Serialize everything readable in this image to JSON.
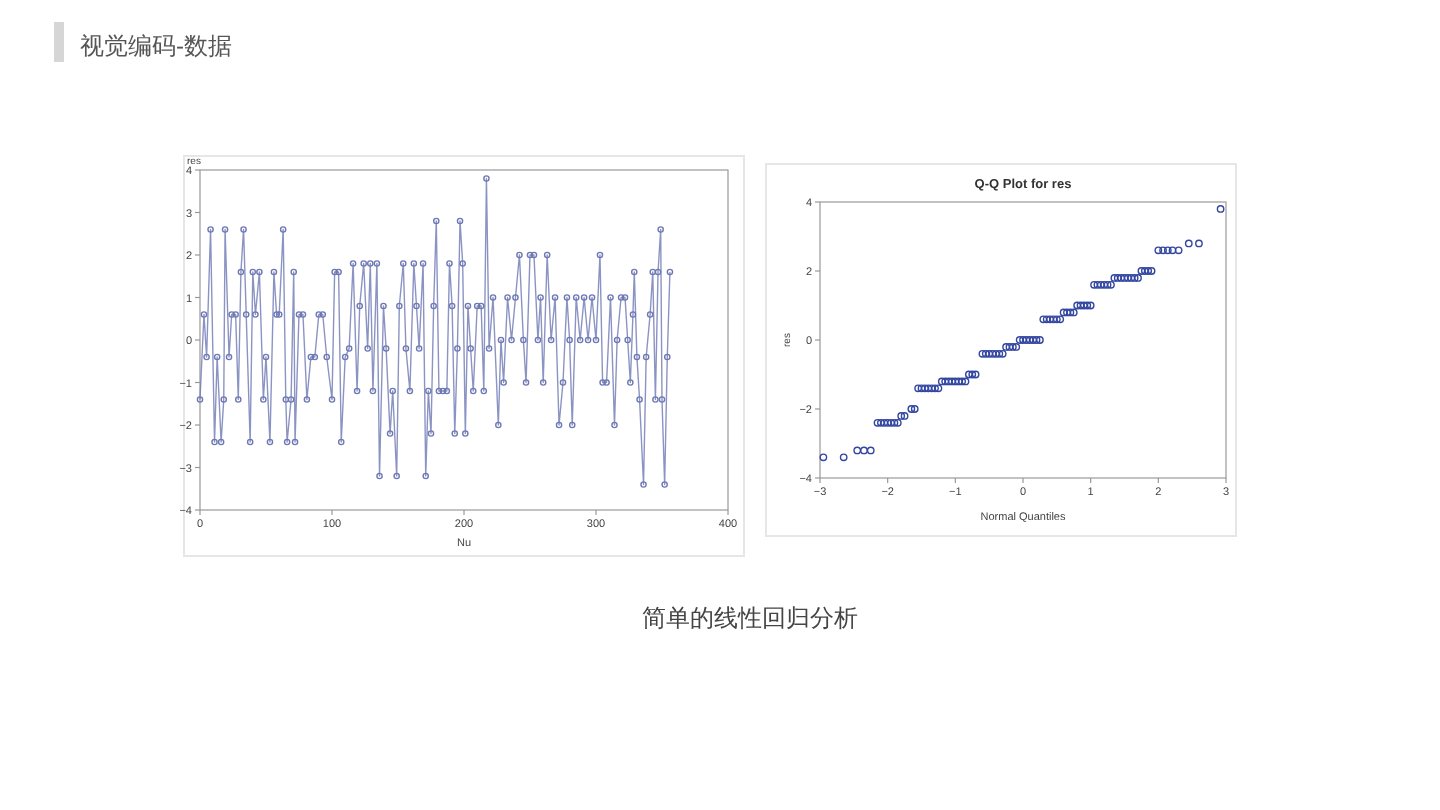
{
  "chart_data": [
    {
      "type": "line",
      "xlabel": "Nu",
      "ylabel": "res",
      "xlim": [
        0,
        400
      ],
      "ylim": [
        -4,
        4
      ],
      "xticks": [
        0,
        100,
        200,
        300,
        400
      ],
      "yticks": [
        -4,
        -3,
        -2,
        -1,
        0,
        1,
        2,
        3,
        4
      ],
      "marker": "circle",
      "annotations": [
        "视觉编码-数据"
      ],
      "series": [
        {
          "color": "#6e78b4",
          "x": [
            0,
            3,
            5,
            8,
            11,
            13,
            16,
            18,
            19,
            22,
            24,
            27,
            29,
            31,
            33,
            35,
            38,
            40,
            42,
            45,
            48,
            50,
            53,
            56,
            58,
            60,
            63,
            65,
            66,
            69,
            71,
            72,
            75,
            78,
            81,
            84,
            87,
            90,
            93,
            96,
            100,
            102,
            105,
            107,
            110,
            113,
            116,
            119,
            121,
            124,
            127,
            129,
            131,
            134,
            136,
            139,
            141,
            144,
            146,
            149,
            151,
            154,
            156,
            159,
            162,
            164,
            166,
            169,
            171,
            173,
            175,
            177,
            179,
            181,
            184,
            187,
            189,
            191,
            193,
            195,
            197,
            199,
            201,
            203,
            205,
            207,
            210,
            213,
            215,
            217,
            219,
            222,
            226,
            228,
            230,
            233,
            236,
            239,
            242,
            245,
            247,
            250,
            253,
            256,
            258,
            260,
            263,
            266,
            269,
            272,
            275,
            278,
            280,
            282,
            285,
            288,
            291,
            294,
            297,
            300,
            303,
            305,
            308,
            311,
            314,
            316,
            319,
            322,
            324,
            326,
            328,
            329,
            331,
            333,
            336,
            338,
            341,
            343,
            345,
            347,
            349,
            350,
            352,
            354,
            356
          ],
          "values": [
            -1.4,
            0.6,
            -0.4,
            2.6,
            -2.4,
            -0.4,
            -2.4,
            -1.4,
            2.6,
            -0.4,
            0.6,
            0.6,
            -1.4,
            1.6,
            2.6,
            0.6,
            -2.4,
            1.6,
            0.6,
            1.6,
            -1.4,
            -0.4,
            -2.4,
            1.6,
            0.6,
            0.6,
            2.6,
            -1.4,
            -2.4,
            -1.4,
            1.6,
            -2.4,
            0.6,
            0.6,
            -1.4,
            -0.4,
            -0.4,
            0.6,
            0.6,
            -0.4,
            -1.4,
            1.6,
            1.6,
            -2.4,
            -0.4,
            -0.2,
            1.8,
            -1.2,
            0.8,
            1.8,
            -0.2,
            1.8,
            -1.2,
            1.8,
            -3.2,
            0.8,
            -0.2,
            -2.2,
            -1.2,
            -3.2,
            0.8,
            1.8,
            -0.2,
            -1.2,
            1.8,
            0.8,
            -0.2,
            1.8,
            -3.2,
            -1.2,
            -2.2,
            0.8,
            2.8,
            -1.2,
            -1.2,
            -1.2,
            1.8,
            0.8,
            -2.2,
            -0.2,
            2.8,
            1.8,
            -2.2,
            0.8,
            -0.2,
            -1.2,
            0.8,
            0.8,
            -1.2,
            3.8,
            -0.2,
            1.0,
            -2.0,
            0,
            -1.0,
            1.0,
            0,
            1.0,
            2.0,
            0,
            -1.0,
            2.0,
            2.0,
            0,
            1.0,
            -1.0,
            2.0,
            0,
            1.0,
            -2.0,
            -1.0,
            1.0,
            0,
            -2.0,
            1.0,
            0,
            1.0,
            0,
            1.0,
            0,
            2.0,
            -1.0,
            -1.0,
            1.0,
            -2.0,
            0,
            1.0,
            1.0,
            0,
            -1.0,
            0.6,
            1.6,
            -0.4,
            -1.4,
            -3.4,
            -0.4,
            0.6,
            1.6,
            -1.4,
            1.6,
            2.6,
            -1.4,
            -3.4,
            -0.4,
            1.6
          ]
        }
      ]
    },
    {
      "type": "scatter",
      "title": "Q-Q Plot for res",
      "xlabel": "Normal Quantiles",
      "ylabel": "res",
      "xlim": [
        -3,
        3
      ],
      "ylim": [
        -4,
        4
      ],
      "xticks": [
        -3,
        -2,
        -1,
        0,
        1,
        2,
        3
      ],
      "yticks": [
        -4,
        -2,
        0,
        2,
        4
      ],
      "marker": "circle",
      "annotations": [
        "简单的线性回归分析"
      ],
      "series": [
        {
          "color": "#3346a0",
          "x": [
            -2.95,
            -2.65,
            -2.45,
            -2.35,
            -2.25,
            -2.15,
            -2.1,
            -2.05,
            -2.0,
            -1.95,
            -1.9,
            -1.85,
            -1.8,
            -1.75,
            -1.65,
            -1.6,
            -1.55,
            -1.5,
            -1.45,
            -1.4,
            -1.35,
            -1.3,
            -1.25,
            -1.2,
            -1.15,
            -1.1,
            -1.05,
            -1.0,
            -0.95,
            -0.9,
            -0.85,
            -0.8,
            -0.75,
            -0.7,
            -0.6,
            -0.55,
            -0.5,
            -0.45,
            -0.4,
            -0.35,
            -0.3,
            -0.25,
            -0.2,
            -0.15,
            -0.1,
            -0.05,
            0,
            0.05,
            0.1,
            0.15,
            0.2,
            0.25,
            0.3,
            0.35,
            0.4,
            0.45,
            0.5,
            0.55,
            0.6,
            0.65,
            0.7,
            0.75,
            0.8,
            0.85,
            0.9,
            0.95,
            1.0,
            1.05,
            1.1,
            1.15,
            1.2,
            1.25,
            1.3,
            1.35,
            1.4,
            1.45,
            1.5,
            1.55,
            1.6,
            1.65,
            1.7,
            1.75,
            1.8,
            1.85,
            1.9,
            2.0,
            2.07,
            2.14,
            2.21,
            2.3,
            2.45,
            2.6,
            2.92
          ],
          "values": [
            -3.4,
            -3.4,
            -3.2,
            -3.2,
            -3.2,
            -2.4,
            -2.4,
            -2.4,
            -2.4,
            -2.4,
            -2.4,
            -2.4,
            -2.2,
            -2.2,
            -2.0,
            -2.0,
            -1.4,
            -1.4,
            -1.4,
            -1.4,
            -1.4,
            -1.4,
            -1.4,
            -1.2,
            -1.2,
            -1.2,
            -1.2,
            -1.2,
            -1.2,
            -1.2,
            -1.2,
            -1.0,
            -1.0,
            -1.0,
            -0.4,
            -0.4,
            -0.4,
            -0.4,
            -0.4,
            -0.4,
            -0.4,
            -0.2,
            -0.2,
            -0.2,
            -0.2,
            0,
            0,
            0,
            0,
            0,
            0,
            0,
            0.6,
            0.6,
            0.6,
            0.6,
            0.6,
            0.6,
            0.8,
            0.8,
            0.8,
            0.8,
            1.0,
            1.0,
            1.0,
            1.0,
            1.0,
            1.6,
            1.6,
            1.6,
            1.6,
            1.6,
            1.6,
            1.8,
            1.8,
            1.8,
            1.8,
            1.8,
            1.8,
            1.8,
            1.8,
            2.0,
            2.0,
            2.0,
            2.0,
            2.6,
            2.6,
            2.6,
            2.6,
            2.6,
            2.8,
            2.8,
            3.8
          ]
        }
      ]
    }
  ]
}
